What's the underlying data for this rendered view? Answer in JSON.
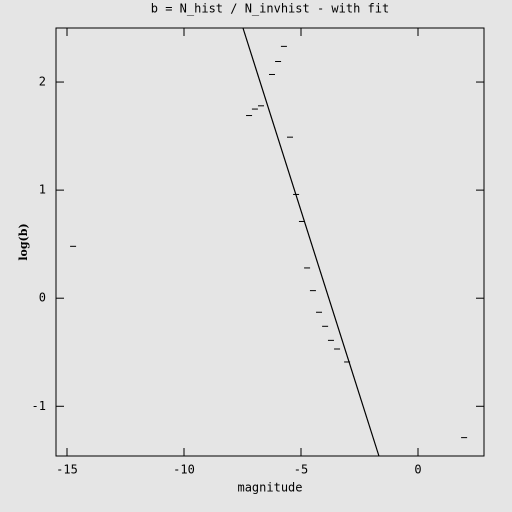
{
  "chart_data": {
    "type": "scatter",
    "title": "b = N_hist / N_invhist - with fit",
    "x_label": "magnitude",
    "y_label": "log(b)",
    "xlim": [
      -15.47,
      2.82
    ],
    "ylim": [
      -1.46,
      2.5
    ],
    "xticks": [
      -15,
      -10,
      -5,
      0
    ],
    "yticks": [
      -1,
      0,
      1,
      2
    ],
    "color": "#000000",
    "points": {
      "x": [
        -14.74,
        -7.22,
        -6.97,
        -6.71,
        -6.24,
        -5.98,
        -5.73,
        -5.47,
        -5.21,
        -4.96,
        -4.74,
        -4.49,
        -4.23,
        -3.97,
        -3.72,
        -3.46,
        -3.03,
        1.97
      ],
      "y": [
        0.48,
        1.69,
        1.75,
        1.78,
        2.07,
        2.19,
        2.33,
        1.49,
        0.96,
        0.71,
        0.28,
        0.07,
        -0.13,
        -0.26,
        -0.39,
        -0.47,
        -0.59,
        -1.29
      ]
    },
    "fit": {
      "x": [
        -7.48,
        -1.67
      ],
      "y": [
        2.5,
        -1.46
      ]
    }
  }
}
